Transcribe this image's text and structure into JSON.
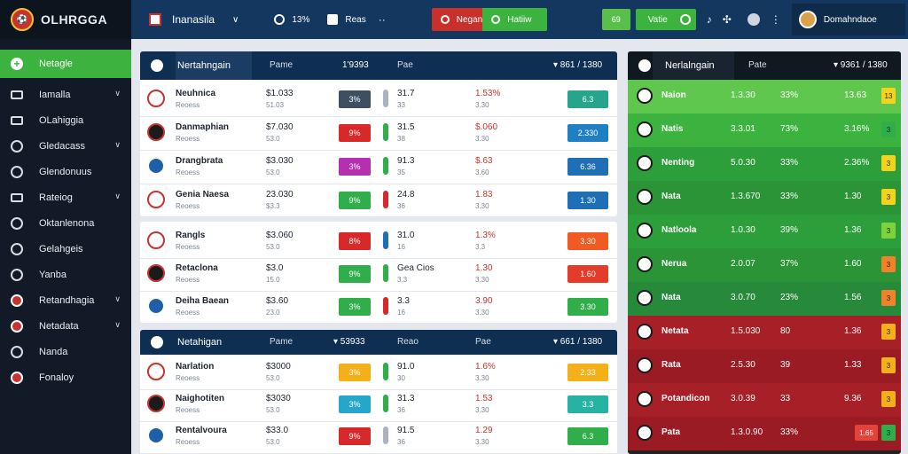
{
  "app": {
    "brand": "OLHRGGA"
  },
  "sidebar": {
    "active": "Netagle",
    "items": [
      {
        "label": "Iamalla"
      },
      {
        "label": "OLahiggia"
      },
      {
        "label": "Gledacass"
      },
      {
        "label": "Glendonuus"
      },
      {
        "label": "Rateiog"
      },
      {
        "label": "Oktanlenona"
      },
      {
        "label": "Gelahgeis"
      },
      {
        "label": "Yanba"
      },
      {
        "label": "Retandhagia"
      },
      {
        "label": "Netadata"
      },
      {
        "label": "Nanda"
      },
      {
        "label": "Fonaloy"
      }
    ]
  },
  "topbar": {
    "title": "Inanasila",
    "stat1": "13%",
    "stat2": "Reas",
    "dots": "··",
    "red_label": "Negan",
    "green_label": "Hatiiw",
    "small_btn": "69",
    "green_btn": "Vatie",
    "user": "Domahndaoe"
  },
  "panel_a": {
    "title": "Nertahngain",
    "tab1": "Pame",
    "tab2": "1'9393",
    "tab3": "Pae",
    "tab4": "▾ 861 / 1380",
    "rows": [
      {
        "name": "Neuhnica",
        "sub": "Reoess",
        "v1": "$1.033",
        "v1s": "51.03",
        "badge": "3%",
        "bcolor": "#3f4f63",
        "barc": "#aab3bf",
        "v2": "31.7",
        "v2s": "33",
        "v3": "1.53%",
        "v3s": "3.30",
        "odds": "6.3",
        "ocolor": "#26a48c"
      },
      {
        "name": "Danmaphian",
        "sub": "Reoess",
        "v1": "$7.030",
        "v1s": "53.0",
        "badge": "9%",
        "bcolor": "#d7282a",
        "barc": "#2fae4a",
        "v2": "31.5",
        "v2s": "38",
        "v3": "$.060",
        "v3s": "3.30",
        "odds": "2.330",
        "ocolor": "#1f7fc3"
      },
      {
        "name": "Drangbrata",
        "sub": "Reoess",
        "v1": "$3.030",
        "v1s": "53.0",
        "badge": "3%",
        "bcolor": "#b52fb0",
        "barc": "#2fae4a",
        "v2": "91.3",
        "v2s": "35",
        "v3": "$.63",
        "v3s": "3.60",
        "odds": "6.36",
        "ocolor": "#1f6fb6"
      },
      {
        "name": "Genia Naesa",
        "sub": "Reoess",
        "v1": "23.030",
        "v1s": "$3.3",
        "badge": "9%",
        "bcolor": "#2fae4a",
        "barc": "#d7282a",
        "v2": "24.8",
        "v2s": "36",
        "v3": "1.83",
        "v3s": "3.30",
        "odds": "1.30",
        "ocolor": "#1f6fb6"
      }
    ]
  },
  "panel_b": {
    "rows": [
      {
        "name": "Rangls",
        "sub": "Reoess",
        "v1": "$3.060",
        "v1s": "53.0",
        "badge": "8%",
        "bcolor": "#d7282a",
        "barc": "#1f6fb6",
        "v2": "31.0",
        "v2s": "16",
        "v3": "1.3%",
        "v3s": "3.3",
        "odds": "3.30",
        "ocolor": "#f05a23"
      },
      {
        "name": "Retaclona",
        "sub": "Reoess",
        "v1": "$3.0",
        "v1s": "15.0",
        "badge": "9%",
        "bcolor": "#2fae4a",
        "barc": "#2fae4a",
        "v2": "Gea Cios",
        "v2s": "3.3",
        "v3": "1.30",
        "v3s": "3.30",
        "odds": "1.60",
        "ocolor": "#e53c2a"
      },
      {
        "name": "Deiha Baean",
        "sub": "Reoess",
        "v1": "$3.60",
        "v1s": "23.0",
        "badge": "3%",
        "bcolor": "#2fae4a",
        "barc": "#d7282a",
        "v2": "3.3",
        "v2s": "16",
        "v3": "3.90",
        "v3s": "3.30",
        "odds": "3.30",
        "ocolor": "#2fae4a"
      }
    ]
  },
  "panel_c": {
    "title": "Netahigan",
    "tab1": "Pame",
    "tab2": "▾ 53933",
    "tab3": "Reao",
    "tab4": "Pae",
    "tab5": "▾ 661 / 1380",
    "rows": [
      {
        "name": "Narlation",
        "sub": "Reoess",
        "v1": "$3000",
        "v1s": "53.0",
        "badge": "3%",
        "bcolor": "#f3b019",
        "barc": "#2fae4a",
        "v2": "91.0",
        "v2s": "30",
        "v3": "1.6%",
        "v3s": "3.30",
        "odds": "2.33",
        "ocolor": "#f3b019"
      },
      {
        "name": "Naighotiten",
        "sub": "Reoess",
        "v1": "$3030",
        "v1s": "53.0",
        "badge": "3%",
        "bcolor": "#26a7c9",
        "barc": "#2fae4a",
        "v2": "31.3",
        "v2s": "36",
        "v3": "1.53",
        "v3s": "3.30",
        "odds": "3.3",
        "ocolor": "#26b3a3"
      },
      {
        "name": "Rentalvoura",
        "sub": "Reoess",
        "v1": "$33.0",
        "v1s": "53.0",
        "badge": "9%",
        "bcolor": "#d7282a",
        "barc": "#aab3bf",
        "v2": "91.5",
        "v2s": "36",
        "v3": "1.29",
        "v3s": "3.30",
        "odds": "6.3",
        "ocolor": "#2fae4a"
      }
    ]
  },
  "right_head": {
    "title": "Nerlalngain",
    "tab1": "Pate",
    "tab2": "▾ 9361 / 1380"
  },
  "right_rows": [
    {
      "name": "Naion",
      "v": "1.3.30",
      "p": "33%",
      "q": "13.63",
      "k": "13",
      "bg": "#5fc74e",
      "kc": "#f4d31d",
      "k2": ""
    },
    {
      "name": "Natis",
      "v": "3.3.01",
      "p": "73%",
      "q": "3.16%",
      "k": "3",
      "bg": "#3cb33f",
      "kc": "#2fae4a",
      "k2": ""
    },
    {
      "name": "Nenting",
      "v": "5.0.30",
      "p": "33%",
      "q": "2.36%",
      "k": "3",
      "bg": "#2d9f3a",
      "kc": "#f4d31d",
      "k2": ""
    },
    {
      "name": "Nata",
      "v": "1.3.670",
      "p": "33%",
      "q": "1.30",
      "k": "3",
      "bg": "#2a9436",
      "kc": "#f4d31d",
      "k2": ""
    },
    {
      "name": "Natloola",
      "v": "1.0.30",
      "p": "39%",
      "q": "1.36",
      "k": "3",
      "bg": "#2d9f3a",
      "kc": "#7ed23c",
      "k2": ""
    },
    {
      "name": "Nerua",
      "v": "2.0.07",
      "p": "37%",
      "q": "1.60",
      "k": "3",
      "bg": "#2a9436",
      "kc": "#f0822a",
      "k2": ""
    },
    {
      "name": "Nata",
      "v": "3.0.70",
      "p": "23%",
      "q": "1.56",
      "k": "3",
      "bg": "#27893a",
      "kc": "#f0822a",
      "k2": ""
    },
    {
      "name": "Netata",
      "v": "1.5.030",
      "p": "80",
      "q": "1.36",
      "k": "3",
      "bg": "#a71f27",
      "kc": "#f3b019",
      "k2": ""
    },
    {
      "name": "Rata",
      "v": "2.5.30",
      "p": "39",
      "q": "1.33",
      "k": "3",
      "bg": "#9a1b24",
      "kc": "#f3b019",
      "k2": ""
    },
    {
      "name": "Potandicon",
      "v": "3.0.39",
      "p": "33",
      "q": "9.36",
      "k": "3",
      "bg": "#a71f27",
      "kc": "#f3b019",
      "k2": ""
    },
    {
      "name": "Pata",
      "v": "1.3.0.90",
      "p": "33%",
      "q": "",
      "k": "3",
      "bg": "#9a1b24",
      "kc": "#2fae4a",
      "k2": "1.65"
    }
  ]
}
